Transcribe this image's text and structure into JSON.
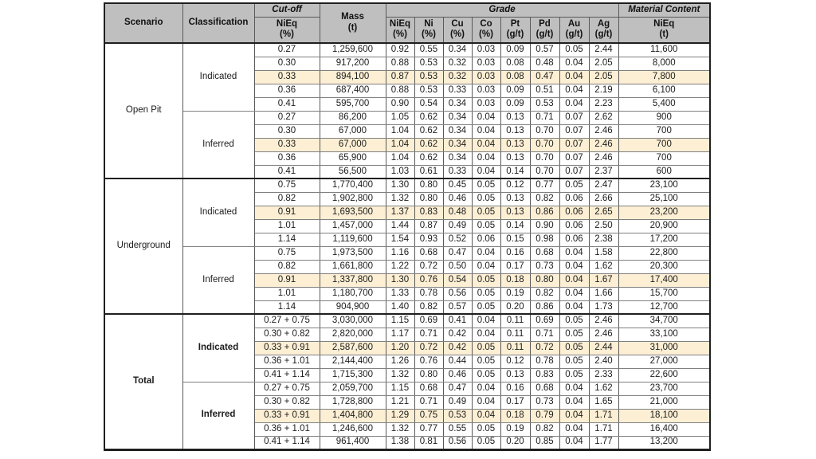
{
  "colors": {
    "header_bg": "#bfbfbf",
    "highlight_bg": "#fcefd4",
    "grid_horizontal": "#808080",
    "grid_vertical": "#595959",
    "grid_major": "#3f3f3f",
    "outer_border": "#1f1f1f",
    "page_bg": "#ffffff",
    "text": "#1c1c1c"
  },
  "header": {
    "scenario": "Scenario",
    "classification": "Classification",
    "cutoff_group": "Cut-off",
    "cutoff_sub_line1": "NiEq",
    "cutoff_sub_line2": "(%)",
    "mass_line1": "Mass",
    "mass_line2": "(t)",
    "grade_group": "Grade",
    "grade_columns": [
      {
        "symbol": "NiEq",
        "unit": "(%)"
      },
      {
        "symbol": "Ni",
        "unit": "(%)"
      },
      {
        "symbol": "Cu",
        "unit": "(%)"
      },
      {
        "symbol": "Co",
        "unit": "(%)"
      },
      {
        "symbol": "Pt",
        "unit": "(g/t)"
      },
      {
        "symbol": "Pd",
        "unit": "(g/t)"
      },
      {
        "symbol": "Au",
        "unit": "(g/t)"
      },
      {
        "symbol": "Ag",
        "unit": "(g/t)"
      }
    ],
    "material_group": "Material Content",
    "material_sub_line1": "NiEq",
    "material_sub_line2": "(t)"
  },
  "sections": [
    {
      "scenario": "Open Pit",
      "bold": false,
      "groups": [
        {
          "classification": "Indicated",
          "rows": [
            {
              "cutoff": "0.27",
              "mass": "1,259,600",
              "grades": [
                "0.92",
                "0.55",
                "0.34",
                "0.03",
                "0.09",
                "0.57",
                "0.05",
                "2.44"
              ],
              "material": "11,600",
              "highlighted": false
            },
            {
              "cutoff": "0.30",
              "mass": "917,200",
              "grades": [
                "0.88",
                "0.53",
                "0.32",
                "0.03",
                "0.08",
                "0.48",
                "0.04",
                "2.05"
              ],
              "material": "8,000",
              "highlighted": false
            },
            {
              "cutoff": "0.33",
              "mass": "894,100",
              "grades": [
                "0.87",
                "0.53",
                "0.32",
                "0.03",
                "0.08",
                "0.47",
                "0.04",
                "2.05"
              ],
              "material": "7,800",
              "highlighted": true
            },
            {
              "cutoff": "0.36",
              "mass": "687,400",
              "grades": [
                "0.88",
                "0.53",
                "0.33",
                "0.03",
                "0.09",
                "0.51",
                "0.04",
                "2.19"
              ],
              "material": "6,100",
              "highlighted": false
            },
            {
              "cutoff": "0.41",
              "mass": "595,700",
              "grades": [
                "0.90",
                "0.54",
                "0.34",
                "0.03",
                "0.09",
                "0.53",
                "0.04",
                "2.23"
              ],
              "material": "5,400",
              "highlighted": false
            }
          ]
        },
        {
          "classification": "Inferred",
          "rows": [
            {
              "cutoff": "0.27",
              "mass": "86,200",
              "grades": [
                "1.05",
                "0.62",
                "0.34",
                "0.04",
                "0.13",
                "0.71",
                "0.07",
                "2.62"
              ],
              "material": "900",
              "highlighted": false
            },
            {
              "cutoff": "0.30",
              "mass": "67,000",
              "grades": [
                "1.04",
                "0.62",
                "0.34",
                "0.04",
                "0.13",
                "0.70",
                "0.07",
                "2.46"
              ],
              "material": "700",
              "highlighted": false
            },
            {
              "cutoff": "0.33",
              "mass": "67,000",
              "grades": [
                "1.04",
                "0.62",
                "0.34",
                "0.04",
                "0.13",
                "0.70",
                "0.07",
                "2.46"
              ],
              "material": "700",
              "highlighted": true
            },
            {
              "cutoff": "0.36",
              "mass": "65,900",
              "grades": [
                "1.04",
                "0.62",
                "0.34",
                "0.04",
                "0.13",
                "0.70",
                "0.07",
                "2.46"
              ],
              "material": "700",
              "highlighted": false
            },
            {
              "cutoff": "0.41",
              "mass": "56,500",
              "grades": [
                "1.03",
                "0.61",
                "0.33",
                "0.04",
                "0.14",
                "0.70",
                "0.07",
                "2.37"
              ],
              "material": "600",
              "highlighted": false
            }
          ]
        }
      ]
    },
    {
      "scenario": "Underground",
      "bold": false,
      "groups": [
        {
          "classification": "Indicated",
          "rows": [
            {
              "cutoff": "0.75",
              "mass": "1,770,400",
              "grades": [
                "1.30",
                "0.80",
                "0.45",
                "0.05",
                "0.12",
                "0.77",
                "0.05",
                "2.47"
              ],
              "material": "23,100",
              "highlighted": false
            },
            {
              "cutoff": "0.82",
              "mass": "1,902,800",
              "grades": [
                "1.32",
                "0.80",
                "0.46",
                "0.05",
                "0.13",
                "0.82",
                "0.06",
                "2.66"
              ],
              "material": "25,100",
              "highlighted": false
            },
            {
              "cutoff": "0.91",
              "mass": "1,693,500",
              "grades": [
                "1.37",
                "0.83",
                "0.48",
                "0.05",
                "0.13",
                "0.86",
                "0.06",
                "2.65"
              ],
              "material": "23,200",
              "highlighted": true
            },
            {
              "cutoff": "1.01",
              "mass": "1,457,000",
              "grades": [
                "1.44",
                "0.87",
                "0.49",
                "0.05",
                "0.14",
                "0.90",
                "0.06",
                "2.50"
              ],
              "material": "20,900",
              "highlighted": false
            },
            {
              "cutoff": "1.14",
              "mass": "1,119,600",
              "grades": [
                "1.54",
                "0.93",
                "0.52",
                "0.06",
                "0.15",
                "0.98",
                "0.06",
                "2.38"
              ],
              "material": "17,200",
              "highlighted": false
            }
          ]
        },
        {
          "classification": "Inferred",
          "rows": [
            {
              "cutoff": "0.75",
              "mass": "1,973,500",
              "grades": [
                "1.16",
                "0.68",
                "0.47",
                "0.04",
                "0.16",
                "0.68",
                "0.04",
                "1.58"
              ],
              "material": "22,800",
              "highlighted": false
            },
            {
              "cutoff": "0.82",
              "mass": "1,661,800",
              "grades": [
                "1.22",
                "0.72",
                "0.50",
                "0.04",
                "0.17",
                "0.73",
                "0.04",
                "1.62"
              ],
              "material": "20,300",
              "highlighted": false
            },
            {
              "cutoff": "0.91",
              "mass": "1,337,800",
              "grades": [
                "1.30",
                "0.76",
                "0.54",
                "0.05",
                "0.18",
                "0.80",
                "0.04",
                "1.67"
              ],
              "material": "17,400",
              "highlighted": true
            },
            {
              "cutoff": "1.01",
              "mass": "1,180,700",
              "grades": [
                "1.33",
                "0.78",
                "0.56",
                "0.05",
                "0.19",
                "0.82",
                "0.04",
                "1.66"
              ],
              "material": "15,700",
              "highlighted": false
            },
            {
              "cutoff": "1.14",
              "mass": "904,900",
              "grades": [
                "1.40",
                "0.82",
                "0.57",
                "0.05",
                "0.20",
                "0.86",
                "0.04",
                "1.73"
              ],
              "material": "12,700",
              "highlighted": false
            }
          ]
        }
      ]
    },
    {
      "scenario": "Total",
      "bold": true,
      "groups": [
        {
          "classification": "Indicated",
          "rows": [
            {
              "cutoff": "0.27 + 0.75",
              "mass": "3,030,000",
              "grades": [
                "1.15",
                "0.69",
                "0.41",
                "0.04",
                "0.11",
                "0.69",
                "0.05",
                "2.46"
              ],
              "material": "34,700",
              "highlighted": false
            },
            {
              "cutoff": "0.30 + 0.82",
              "mass": "2,820,000",
              "grades": [
                "1.17",
                "0.71",
                "0.42",
                "0.04",
                "0.11",
                "0.71",
                "0.05",
                "2.46"
              ],
              "material": "33,100",
              "highlighted": false
            },
            {
              "cutoff": "0.33 + 0.91",
              "mass": "2,587,600",
              "grades": [
                "1.20",
                "0.72",
                "0.42",
                "0.05",
                "0.11",
                "0.72",
                "0.05",
                "2.44"
              ],
              "material": "31,000",
              "highlighted": true
            },
            {
              "cutoff": "0.36 + 1.01",
              "mass": "2,144,400",
              "grades": [
                "1.26",
                "0.76",
                "0.44",
                "0.05",
                "0.12",
                "0.78",
                "0.05",
                "2.40"
              ],
              "material": "27,000",
              "highlighted": false
            },
            {
              "cutoff": "0.41 + 1.14",
              "mass": "1,715,300",
              "grades": [
                "1.32",
                "0.80",
                "0.46",
                "0.05",
                "0.13",
                "0.83",
                "0.05",
                "2.33"
              ],
              "material": "22,600",
              "highlighted": false
            }
          ]
        },
        {
          "classification": "Inferred",
          "rows": [
            {
              "cutoff": "0.27 + 0.75",
              "mass": "2,059,700",
              "grades": [
                "1.15",
                "0.68",
                "0.47",
                "0.04",
                "0.16",
                "0.68",
                "0.04",
                "1.62"
              ],
              "material": "23,700",
              "highlighted": false
            },
            {
              "cutoff": "0.30 + 0.82",
              "mass": "1,728,800",
              "grades": [
                "1.21",
                "0.71",
                "0.49",
                "0.04",
                "0.17",
                "0.73",
                "0.04",
                "1.65"
              ],
              "material": "21,000",
              "highlighted": false
            },
            {
              "cutoff": "0.33 + 0.91",
              "mass": "1,404,800",
              "grades": [
                "1.29",
                "0.75",
                "0.53",
                "0.04",
                "0.18",
                "0.79",
                "0.04",
                "1.71"
              ],
              "material": "18,100",
              "highlighted": true
            },
            {
              "cutoff": "0.36 + 1.01",
              "mass": "1,246,600",
              "grades": [
                "1.32",
                "0.77",
                "0.55",
                "0.05",
                "0.19",
                "0.82",
                "0.04",
                "1.71"
              ],
              "material": "16,400",
              "highlighted": false
            },
            {
              "cutoff": "0.41 + 1.14",
              "mass": "961,400",
              "grades": [
                "1.38",
                "0.81",
                "0.56",
                "0.05",
                "0.20",
                "0.85",
                "0.04",
                "1.77"
              ],
              "material": "13,200",
              "highlighted": false
            }
          ]
        }
      ]
    }
  ]
}
